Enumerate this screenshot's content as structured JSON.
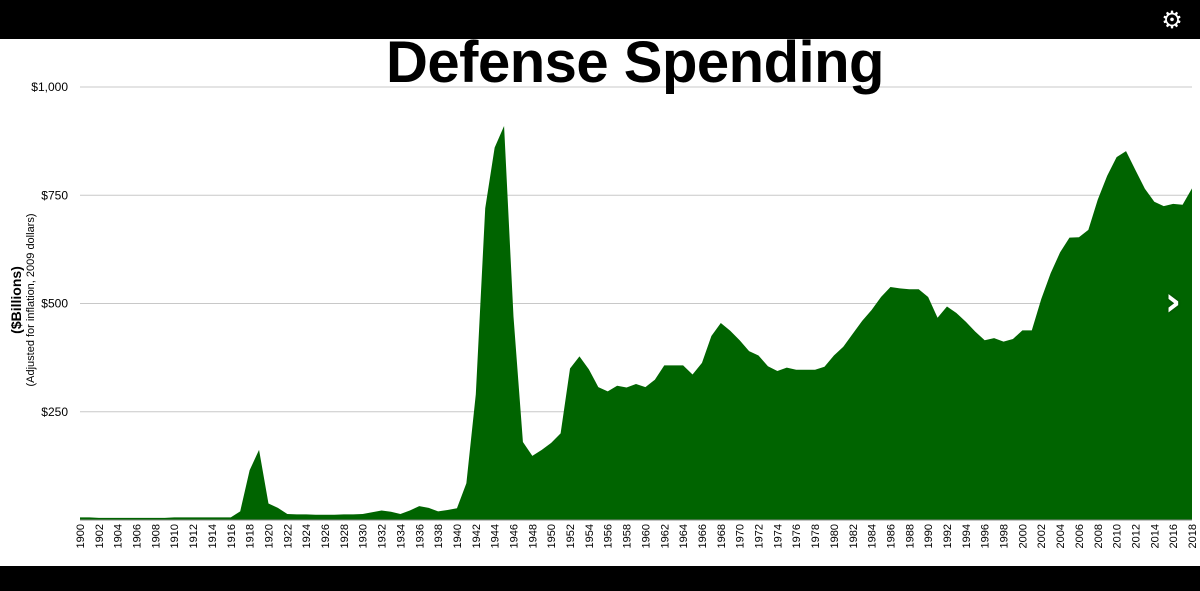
{
  "header": {
    "settings_icon": "gear-icon"
  },
  "nav": {
    "next_icon": "chevron-right-icon"
  },
  "chart_data": {
    "type": "area",
    "title": "Defense Spending",
    "ylabel": "($Billions)",
    "ylabel_sub": "(Adjusted for inflation, 2009 dollars)",
    "ylim": [
      0,
      1000
    ],
    "yticks": [
      250,
      500,
      750,
      1000
    ],
    "ytick_labels": [
      "$250",
      "$500",
      "$750",
      "$1,000"
    ],
    "grid": true,
    "color": "#006400",
    "x": [
      1900,
      1901,
      1902,
      1903,
      1904,
      1905,
      1906,
      1907,
      1908,
      1909,
      1910,
      1911,
      1912,
      1913,
      1914,
      1915,
      1916,
      1917,
      1918,
      1919,
      1920,
      1921,
      1922,
      1923,
      1924,
      1925,
      1926,
      1927,
      1928,
      1929,
      1930,
      1931,
      1932,
      1933,
      1934,
      1935,
      1936,
      1937,
      1938,
      1939,
      1940,
      1941,
      1942,
      1943,
      1944,
      1945,
      1946,
      1947,
      1948,
      1949,
      1950,
      1951,
      1952,
      1953,
      1954,
      1955,
      1956,
      1957,
      1958,
      1959,
      1960,
      1961,
      1962,
      1963,
      1964,
      1965,
      1966,
      1967,
      1968,
      1969,
      1970,
      1971,
      1972,
      1973,
      1974,
      1975,
      1976,
      1977,
      1978,
      1979,
      1980,
      1981,
      1982,
      1983,
      1984,
      1985,
      1986,
      1987,
      1988,
      1989,
      1990,
      1991,
      1992,
      1993,
      1994,
      1995,
      1996,
      1997,
      1998,
      1999,
      2000,
      2001,
      2002,
      2003,
      2004,
      2005,
      2006,
      2007,
      2008,
      2009,
      2010,
      2011,
      2012,
      2013,
      2014,
      2015,
      2016,
      2017,
      2018
    ],
    "values": [
      6,
      6,
      5,
      5,
      5,
      5,
      5,
      5,
      5,
      5,
      6,
      6,
      6,
      6,
      6,
      6,
      6,
      20,
      115,
      162,
      38,
      28,
      14,
      13,
      13,
      12,
      12,
      12,
      13,
      13,
      14,
      18,
      22,
      19,
      14,
      22,
      32,
      28,
      20,
      23,
      27,
      85,
      290,
      720,
      860,
      910,
      470,
      180,
      148,
      162,
      178,
      200,
      350,
      378,
      348,
      307,
      297,
      310,
      306,
      314,
      307,
      324,
      357,
      357,
      357,
      336,
      363,
      425,
      455,
      437,
      415,
      390,
      380,
      355,
      344,
      352,
      347,
      347,
      347,
      354,
      380,
      400,
      430,
      460,
      485,
      515,
      538,
      535,
      533,
      533,
      515,
      467,
      493,
      478,
      458,
      435,
      415,
      420,
      412,
      418,
      438,
      438,
      510,
      570,
      618,
      652,
      653,
      670,
      740,
      795,
      838,
      852,
      808,
      765,
      735,
      725,
      730,
      728,
      766
    ],
    "xtick_labels": [
      "1900",
      "1902",
      "1904",
      "1906",
      "1908",
      "1910",
      "1912",
      "1914",
      "1916",
      "1918",
      "1920",
      "1922",
      "1924",
      "1926",
      "1928",
      "1930",
      "1932",
      "1934",
      "1936",
      "1938",
      "1940",
      "1942",
      "1944",
      "1946",
      "1948",
      "1950",
      "1952",
      "1954",
      "1956",
      "1958",
      "1960",
      "1962",
      "1964",
      "1966",
      "1968",
      "1970",
      "1972",
      "1974",
      "1976",
      "1978",
      "1980",
      "1982",
      "1984",
      "1986",
      "1988",
      "1990",
      "1992",
      "1994",
      "1996",
      "1998",
      "2000",
      "2002",
      "2004",
      "2006",
      "2008",
      "2010",
      "2012",
      "2014",
      "2016",
      "2018"
    ]
  }
}
